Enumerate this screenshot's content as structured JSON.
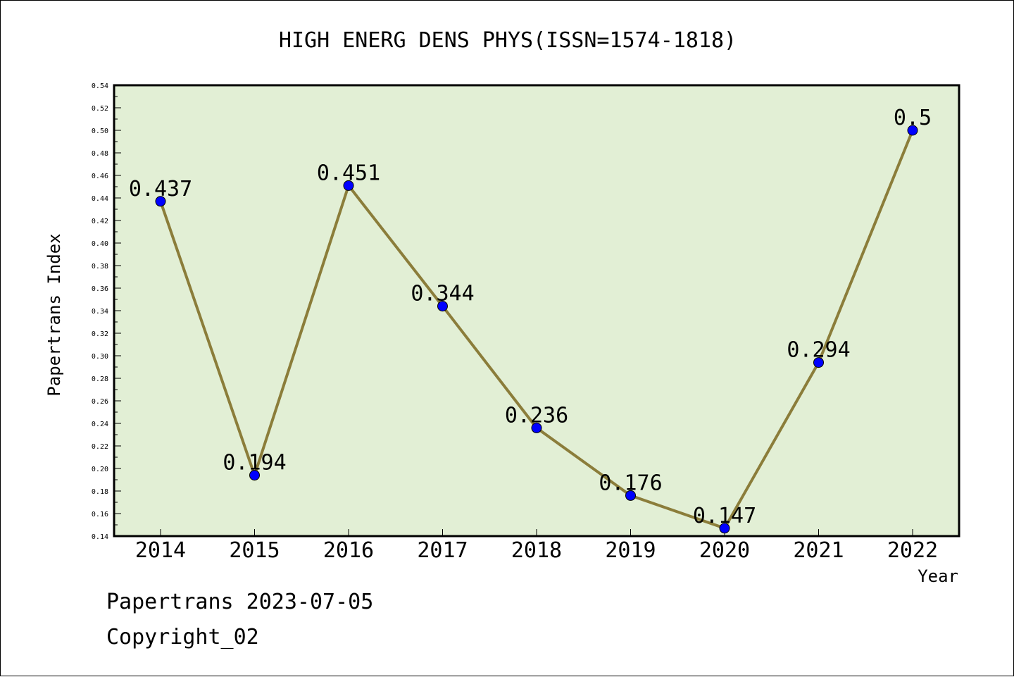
{
  "chart_data": {
    "type": "line",
    "title": "HIGH ENERG DENS PHYS(ISSN=1574-1818)",
    "xlabel": "Year",
    "ylabel": "Papertrans Index",
    "categories": [
      "2014",
      "2015",
      "2016",
      "2017",
      "2018",
      "2019",
      "2020",
      "2021",
      "2022"
    ],
    "series": [
      {
        "values": [
          0.437,
          0.194,
          0.451,
          0.344,
          0.236,
          0.176,
          0.147,
          0.294,
          0.5
        ]
      }
    ],
    "data_labels": [
      "0.437",
      "0.194",
      "0.451",
      "0.344",
      "0.236",
      "0.176",
      "0.147",
      "0.294",
      "0.5"
    ],
    "ylim": [
      0.14,
      0.54
    ],
    "yticks": [
      "0.14",
      "0.16",
      "0.18",
      "0.20",
      "0.22",
      "0.24",
      "0.26",
      "0.28",
      "0.30",
      "0.32",
      "0.34",
      "0.36",
      "0.38",
      "0.40",
      "0.42",
      "0.44",
      "0.46",
      "0.48",
      "0.50",
      "0.52",
      "0.54"
    ],
    "grid": false,
    "colors": {
      "plot_background": "#e2efd5",
      "line": "#8b7d3a",
      "marker": "#0000ff"
    }
  },
  "footer": {
    "date_line": "Papertrans 2023-07-05",
    "copyright_line": "Copyright_02"
  }
}
